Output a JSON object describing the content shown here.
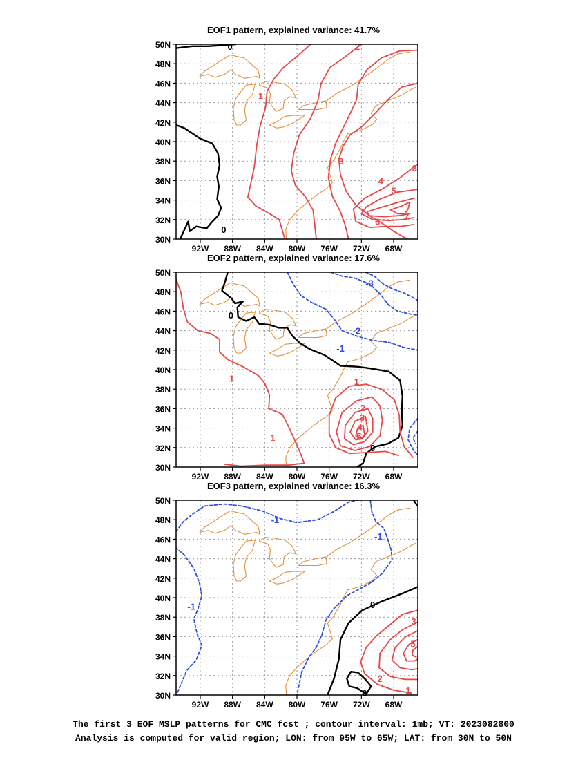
{
  "panels": [
    {
      "title": "EOF1 pattern, explained variance: 41.7%",
      "labels": [
        {
          "text": "0",
          "color": "black"
        },
        {
          "text": "0",
          "color": "black"
        },
        {
          "text": "1",
          "color": "red"
        },
        {
          "text": "2",
          "color": "red"
        },
        {
          "text": "3",
          "color": "red"
        },
        {
          "text": "3",
          "color": "red"
        },
        {
          "text": "4",
          "color": "red"
        },
        {
          "text": "5",
          "color": "red"
        },
        {
          "text": "6",
          "color": "red"
        },
        {
          "text": "7",
          "color": "red"
        }
      ]
    },
    {
      "title": "EOF2 pattern, explained variance: 17.6%",
      "labels": [
        {
          "text": "0",
          "color": "black"
        },
        {
          "text": "0",
          "color": "black"
        },
        {
          "text": "1",
          "color": "red"
        },
        {
          "text": "1",
          "color": "red"
        },
        {
          "text": "1",
          "color": "red"
        },
        {
          "text": "2",
          "color": "red"
        },
        {
          "text": "3",
          "color": "red"
        },
        {
          "text": "4",
          "color": "red"
        },
        {
          "text": "5",
          "color": "red"
        },
        {
          "text": "-1",
          "color": "blue"
        },
        {
          "text": "-2",
          "color": "blue"
        },
        {
          "text": "-3",
          "color": "blue"
        }
      ]
    },
    {
      "title": "EOF3 pattern, explained variance: 16.3%",
      "labels": [
        {
          "text": "0",
          "color": "black"
        },
        {
          "text": "0",
          "color": "black"
        },
        {
          "text": "-1",
          "color": "blue"
        },
        {
          "text": "-1",
          "color": "blue"
        },
        {
          "text": "-1",
          "color": "blue"
        },
        {
          "text": "1",
          "color": "red"
        },
        {
          "text": "2",
          "color": "red"
        },
        {
          "text": "3",
          "color": "red"
        },
        {
          "text": "5",
          "color": "red"
        }
      ]
    }
  ],
  "lat_labels": [
    "50N",
    "48N",
    "46N",
    "44N",
    "42N",
    "40N",
    "38N",
    "36N",
    "34N",
    "32N",
    "30N"
  ],
  "lon_labels": [
    "92W",
    "88W",
    "84W",
    "80W",
    "76W",
    "72W",
    "68W"
  ],
  "footer": {
    "line1": "The first 3 EOF MSLP patterns for CMC fcst ; contour interval: 1mb; VT: 2023082800",
    "line2": "Analysis is computed for valid region; LON: from 95W to 65W; LAT: from 30N to 50N"
  },
  "colors": {
    "positive": "#e8474a",
    "negative": "#2d4fe0",
    "zero": "#000000",
    "coast": "#e0913a",
    "grid": "#9a9a9a"
  }
}
